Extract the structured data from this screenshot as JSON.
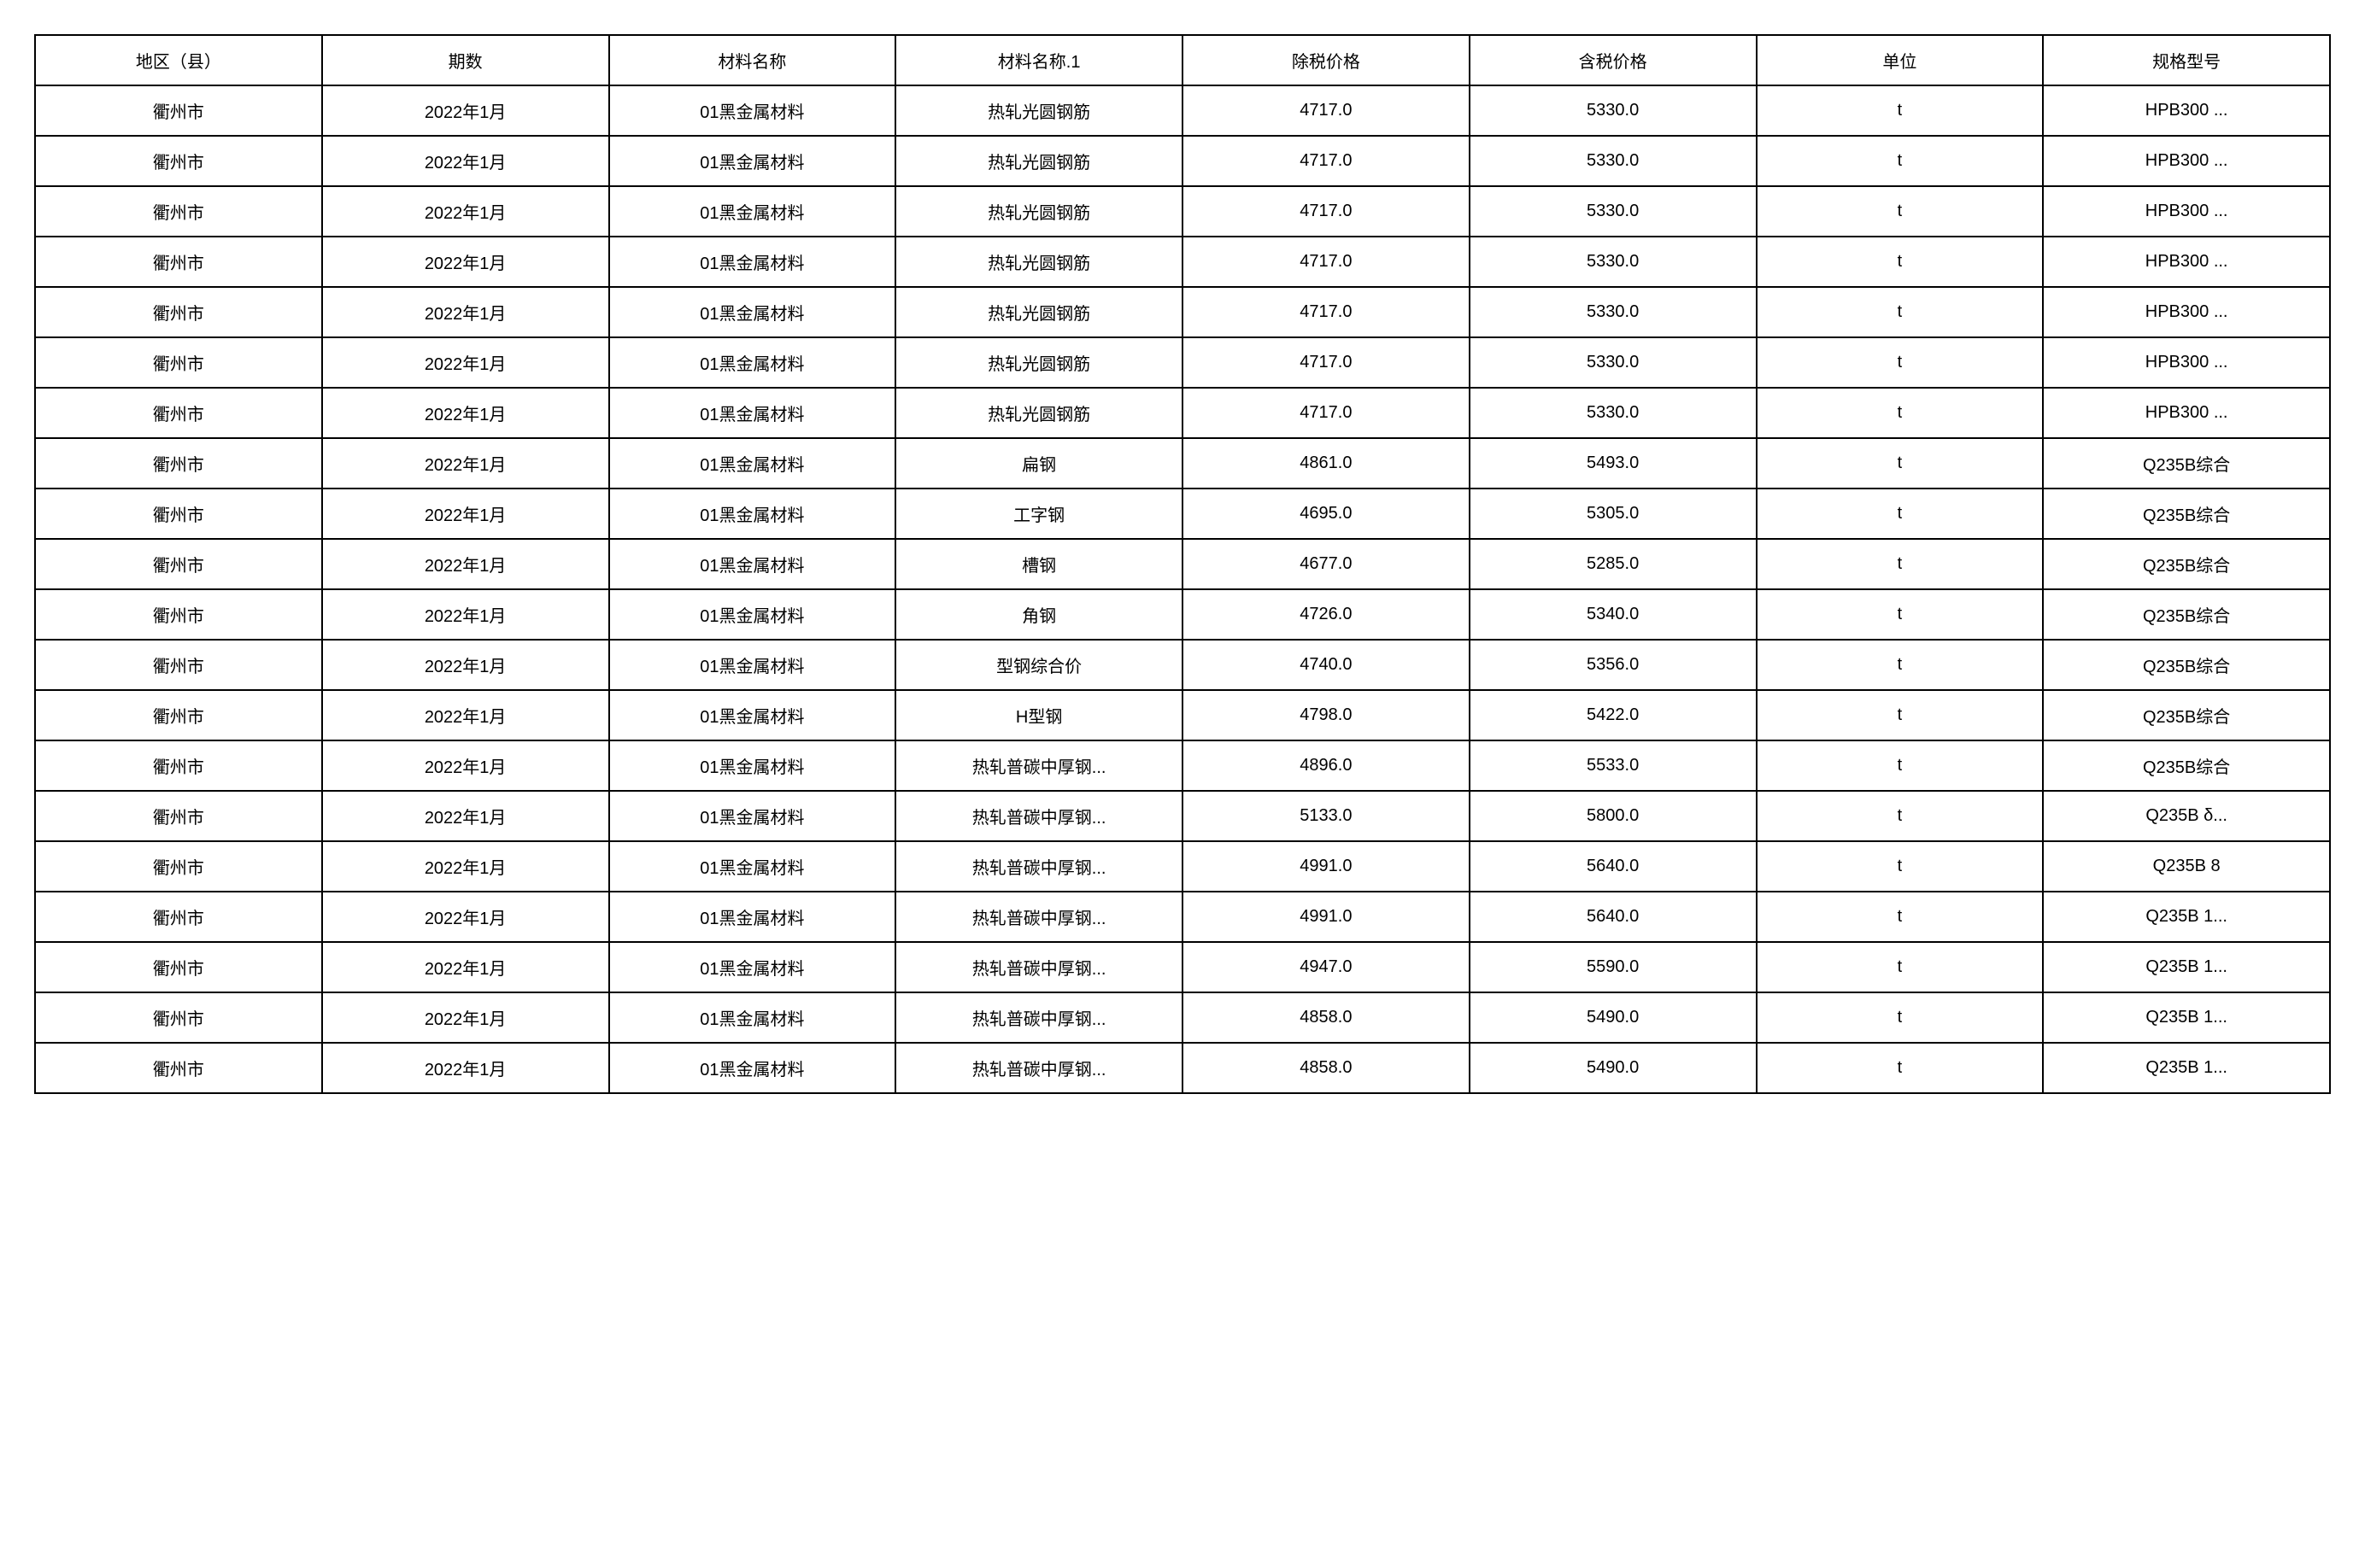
{
  "table": {
    "type": "table",
    "background_color": "#ffffff",
    "border_color": "#000000",
    "border_width": 2,
    "font_size": 20,
    "text_color": "#000000",
    "cell_padding": 14,
    "columns": [
      {
        "key": "region",
        "label": "地区（县）",
        "width": "12.5%"
      },
      {
        "key": "period",
        "label": "期数",
        "width": "12.5%"
      },
      {
        "key": "material_category",
        "label": "材料名称",
        "width": "12.5%"
      },
      {
        "key": "material_name",
        "label": "材料名称.1",
        "width": "12.5%"
      },
      {
        "key": "price_no_tax",
        "label": "除税价格",
        "width": "12.5%"
      },
      {
        "key": "price_with_tax",
        "label": "含税价格",
        "width": "12.5%"
      },
      {
        "key": "unit",
        "label": "单位",
        "width": "12.5%"
      },
      {
        "key": "spec",
        "label": "规格型号",
        "width": "12.5%"
      }
    ],
    "rows": [
      {
        "region": "衢州市",
        "period": "2022年1月",
        "material_category": "01黑金属材料",
        "material_name": "热轧光圆钢筋",
        "price_no_tax": "4717.0",
        "price_with_tax": "5330.0",
        "unit": "t",
        "spec": "HPB300 ..."
      },
      {
        "region": "衢州市",
        "period": "2022年1月",
        "material_category": "01黑金属材料",
        "material_name": "热轧光圆钢筋",
        "price_no_tax": "4717.0",
        "price_with_tax": "5330.0",
        "unit": "t",
        "spec": "HPB300 ..."
      },
      {
        "region": "衢州市",
        "period": "2022年1月",
        "material_category": "01黑金属材料",
        "material_name": "热轧光圆钢筋",
        "price_no_tax": "4717.0",
        "price_with_tax": "5330.0",
        "unit": "t",
        "spec": "HPB300 ..."
      },
      {
        "region": "衢州市",
        "period": "2022年1月",
        "material_category": "01黑金属材料",
        "material_name": "热轧光圆钢筋",
        "price_no_tax": "4717.0",
        "price_with_tax": "5330.0",
        "unit": "t",
        "spec": "HPB300 ..."
      },
      {
        "region": "衢州市",
        "period": "2022年1月",
        "material_category": "01黑金属材料",
        "material_name": "热轧光圆钢筋",
        "price_no_tax": "4717.0",
        "price_with_tax": "5330.0",
        "unit": "t",
        "spec": "HPB300 ..."
      },
      {
        "region": "衢州市",
        "period": "2022年1月",
        "material_category": "01黑金属材料",
        "material_name": "热轧光圆钢筋",
        "price_no_tax": "4717.0",
        "price_with_tax": "5330.0",
        "unit": "t",
        "spec": "HPB300 ..."
      },
      {
        "region": "衢州市",
        "period": "2022年1月",
        "material_category": "01黑金属材料",
        "material_name": "热轧光圆钢筋",
        "price_no_tax": "4717.0",
        "price_with_tax": "5330.0",
        "unit": "t",
        "spec": "HPB300 ..."
      },
      {
        "region": "衢州市",
        "period": "2022年1月",
        "material_category": "01黑金属材料",
        "material_name": "扁钢",
        "price_no_tax": "4861.0",
        "price_with_tax": "5493.0",
        "unit": "t",
        "spec": "Q235B综合"
      },
      {
        "region": "衢州市",
        "period": "2022年1月",
        "material_category": "01黑金属材料",
        "material_name": "工字钢",
        "price_no_tax": "4695.0",
        "price_with_tax": "5305.0",
        "unit": "t",
        "spec": "Q235B综合"
      },
      {
        "region": "衢州市",
        "period": "2022年1月",
        "material_category": "01黑金属材料",
        "material_name": "槽钢",
        "price_no_tax": "4677.0",
        "price_with_tax": "5285.0",
        "unit": "t",
        "spec": "Q235B综合"
      },
      {
        "region": "衢州市",
        "period": "2022年1月",
        "material_category": "01黑金属材料",
        "material_name": "角钢",
        "price_no_tax": "4726.0",
        "price_with_tax": "5340.0",
        "unit": "t",
        "spec": "Q235B综合"
      },
      {
        "region": "衢州市",
        "period": "2022年1月",
        "material_category": "01黑金属材料",
        "material_name": "型钢综合价",
        "price_no_tax": "4740.0",
        "price_with_tax": "5356.0",
        "unit": "t",
        "spec": "Q235B综合"
      },
      {
        "region": "衢州市",
        "period": "2022年1月",
        "material_category": "01黑金属材料",
        "material_name": "H型钢",
        "price_no_tax": "4798.0",
        "price_with_tax": "5422.0",
        "unit": "t",
        "spec": "Q235B综合"
      },
      {
        "region": "衢州市",
        "period": "2022年1月",
        "material_category": "01黑金属材料",
        "material_name": "热轧普碳中厚钢...",
        "price_no_tax": "4896.0",
        "price_with_tax": "5533.0",
        "unit": "t",
        "spec": "Q235B综合"
      },
      {
        "region": "衢州市",
        "period": "2022年1月",
        "material_category": "01黑金属材料",
        "material_name": "热轧普碳中厚钢...",
        "price_no_tax": "5133.0",
        "price_with_tax": "5800.0",
        "unit": "t",
        "spec": "Q235B δ..."
      },
      {
        "region": "衢州市",
        "period": "2022年1月",
        "material_category": "01黑金属材料",
        "material_name": "热轧普碳中厚钢...",
        "price_no_tax": "4991.0",
        "price_with_tax": "5640.0",
        "unit": "t",
        "spec": "Q235B 8"
      },
      {
        "region": "衢州市",
        "period": "2022年1月",
        "material_category": "01黑金属材料",
        "material_name": "热轧普碳中厚钢...",
        "price_no_tax": "4991.0",
        "price_with_tax": "5640.0",
        "unit": "t",
        "spec": "Q235B 1..."
      },
      {
        "region": "衢州市",
        "period": "2022年1月",
        "material_category": "01黑金属材料",
        "material_name": "热轧普碳中厚钢...",
        "price_no_tax": "4947.0",
        "price_with_tax": "5590.0",
        "unit": "t",
        "spec": "Q235B 1..."
      },
      {
        "region": "衢州市",
        "period": "2022年1月",
        "material_category": "01黑金属材料",
        "material_name": "热轧普碳中厚钢...",
        "price_no_tax": "4858.0",
        "price_with_tax": "5490.0",
        "unit": "t",
        "spec": "Q235B 1..."
      },
      {
        "region": "衢州市",
        "period": "2022年1月",
        "material_category": "01黑金属材料",
        "material_name": "热轧普碳中厚钢...",
        "price_no_tax": "4858.0",
        "price_with_tax": "5490.0",
        "unit": "t",
        "spec": "Q235B 1..."
      }
    ]
  }
}
